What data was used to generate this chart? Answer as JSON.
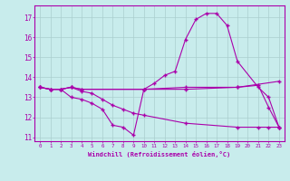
{
  "background_color": "#c8ecec",
  "grid_color": "#aacece",
  "line_color": "#aa00aa",
  "marker": "+",
  "xlabel": "Windchill (Refroidissement éolien,°C)",
  "xlim": [
    -0.5,
    23.5
  ],
  "ylim": [
    10.8,
    17.6
  ],
  "yticks": [
    11,
    12,
    13,
    14,
    15,
    16,
    17
  ],
  "xticks": [
    0,
    1,
    2,
    3,
    4,
    5,
    6,
    7,
    8,
    9,
    10,
    11,
    12,
    13,
    14,
    15,
    16,
    17,
    18,
    19,
    20,
    21,
    22,
    23
  ],
  "line1_x": [
    0,
    1,
    2,
    3,
    4,
    10,
    14,
    19,
    23
  ],
  "line1_y": [
    13.5,
    13.4,
    13.4,
    13.5,
    13.4,
    13.4,
    13.5,
    13.5,
    13.8
  ],
  "line2_x": [
    0,
    1,
    2,
    3,
    4,
    5,
    6,
    7,
    8,
    9,
    10,
    14,
    19,
    21,
    22,
    23
  ],
  "line2_y": [
    13.5,
    13.4,
    13.4,
    13.0,
    12.9,
    12.7,
    12.4,
    11.6,
    11.5,
    11.1,
    13.4,
    13.4,
    13.5,
    13.6,
    12.5,
    11.5
  ],
  "line3_x": [
    0,
    1,
    2,
    3,
    4,
    10,
    11,
    12,
    13,
    14,
    15,
    16,
    17,
    18,
    19,
    21,
    22,
    23
  ],
  "line3_y": [
    13.5,
    13.4,
    13.4,
    13.5,
    13.4,
    13.4,
    13.7,
    14.1,
    14.3,
    15.9,
    16.9,
    17.2,
    17.2,
    16.6,
    14.8,
    13.5,
    13.0,
    11.5
  ],
  "line4_x": [
    0,
    1,
    2,
    3,
    4,
    5,
    6,
    7,
    8,
    9,
    10,
    14,
    19,
    21,
    22,
    23
  ],
  "line4_y": [
    13.5,
    13.4,
    13.4,
    13.5,
    13.3,
    13.2,
    12.9,
    12.6,
    12.4,
    12.2,
    12.1,
    11.7,
    11.5,
    11.5,
    11.5,
    11.5
  ]
}
